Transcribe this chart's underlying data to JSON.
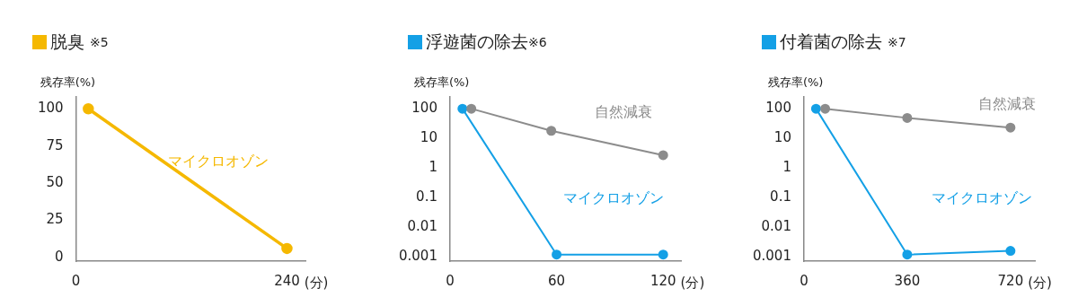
{
  "chart_data": [
    {
      "type": "line",
      "title": "脱臭 ※5",
      "ylabel": "残存率(%)",
      "xlabel": "(分)",
      "xlim": [
        0,
        261
      ],
      "xticks": [
        0,
        240
      ],
      "ylim": [
        -2.5,
        108
      ],
      "yticks": [
        0,
        25,
        50,
        75,
        100
      ],
      "grid": false,
      "legend": false,
      "marker": "circle",
      "line_style": "solid",
      "series": [
        {
          "name": "マイクロオゾン",
          "color": "#f5b800",
          "x": [
            14,
            240
          ],
          "values": [
            100,
            6
          ]
        }
      ]
    },
    {
      "type": "line",
      "title": "浮遊菌の除去※6",
      "ylabel": "残存率(%)",
      "xlabel": "(分)",
      "xlim": [
        0,
        130
      ],
      "xticks": [
        0,
        60,
        120
      ],
      "ylim": [
        0.00072,
        250
      ],
      "yticks": [
        0.001,
        0.01,
        0.1,
        1,
        10,
        100
      ],
      "log": "y",
      "grid": false,
      "legend": false,
      "marker": "circle",
      "line_style": "solid",
      "series": [
        {
          "name": "自然減衰",
          "color": "#8c8c8c",
          "x": [
            12,
            57,
            120
          ],
          "values": [
            100,
            18,
            2.7
          ]
        },
        {
          "name": "マイクロオゾン",
          "color": "#14a0e6",
          "x": [
            7,
            60,
            120
          ],
          "values": [
            100,
            0.0012,
            0.0012
          ]
        }
      ]
    },
    {
      "type": "line",
      "title": "付着菌の除去 ※7",
      "ylabel": "残存率(%)",
      "xlabel": "(分)",
      "xlim": [
        0,
        805
      ],
      "xticks": [
        0,
        360,
        720
      ],
      "ylim": [
        0.00072,
        250
      ],
      "yticks": [
        0.001,
        0.01,
        0.1,
        1,
        10,
        100
      ],
      "log": "y",
      "grid": false,
      "legend": false,
      "marker": "circle",
      "line_style": "solid",
      "series": [
        {
          "name": "自然減衰",
          "color": "#8c8c8c",
          "x": [
            74,
            360,
            720
          ],
          "values": [
            100,
            49,
            23
          ]
        },
        {
          "name": "マイクロオゾン",
          "color": "#14a0e6",
          "x": [
            42,
            360,
            720
          ],
          "values": [
            100,
            0.0012,
            0.0016
          ]
        }
      ]
    }
  ]
}
